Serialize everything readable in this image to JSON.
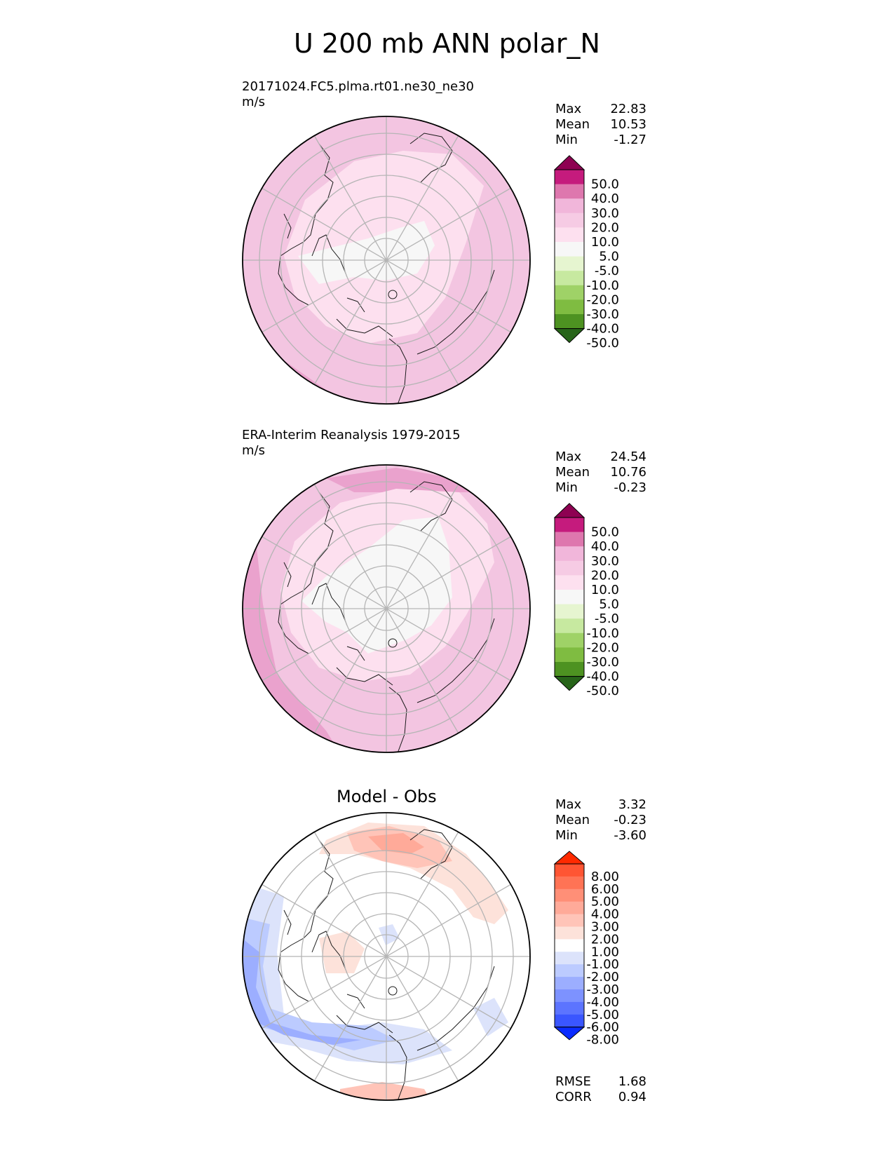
{
  "title": "U 200 mb ANN polar_N",
  "panels": [
    {
      "id": "test",
      "title_line1": "20171024.FC5.plma.rt01.ne30_ne30",
      "title_line2": "m/s",
      "stats": [
        {
          "label": "Max",
          "value": "22.83"
        },
        {
          "label": "Mean",
          "value": "10.53"
        },
        {
          "label": "Min",
          "value": "-1.27"
        }
      ]
    },
    {
      "id": "ref",
      "title_line1": "ERA-Interim Reanalysis 1979-2015",
      "title_line2": "m/s",
      "stats": [
        {
          "label": "Max",
          "value": "24.54"
        },
        {
          "label": "Mean",
          "value": "10.76"
        },
        {
          "label": "Min",
          "value": "-0.23"
        }
      ]
    },
    {
      "id": "diff",
      "title": "Model - Obs",
      "stats": [
        {
          "label": "Max",
          "value": "3.32"
        },
        {
          "label": "Mean",
          "value": "-0.23"
        },
        {
          "label": "Min",
          "value": "-3.60"
        }
      ],
      "metrics": [
        {
          "label": "RMSE",
          "value": "1.68"
        },
        {
          "label": "CORR",
          "value": "0.94"
        }
      ]
    }
  ],
  "colorbars": {
    "field": {
      "labels": [
        "50.0",
        "40.0",
        "30.0",
        "20.0",
        "10.0",
        "5.0",
        "-5.0",
        "-10.0",
        "-20.0",
        "-30.0",
        "-40.0",
        "-50.0"
      ],
      "colors": [
        "#8e0152",
        "#c51b7d",
        "#de77ae",
        "#f1b6da",
        "#f6cbe4",
        "#fde0ef",
        "#f7f7f7",
        "#e6f5d0",
        "#c7e9a0",
        "#9fd267",
        "#7fbc41",
        "#4d9221",
        "#276419"
      ]
    },
    "diff": {
      "labels": [
        "8.00",
        "6.00",
        "5.00",
        "4.00",
        "3.00",
        "2.00",
        "1.00",
        "-1.00",
        "-2.00",
        "-3.00",
        "-4.00",
        "-5.00",
        "-6.00",
        "-8.00"
      ],
      "colors": [
        "#ff2a00",
        "#ff5533",
        "#ff7355",
        "#ff8f77",
        "#ffaa99",
        "#ffc4b8",
        "#fde2da",
        "#ffffff",
        "#dce3fb",
        "#bccbff",
        "#9caeff",
        "#7d92ff",
        "#5c74ff",
        "#3a56ff",
        "#0a2bff"
      ]
    }
  },
  "chart_data": {
    "type": "heatmap",
    "title": "U 200 mb ANN polar_N",
    "variable": "U 200 mb",
    "units": "m/s",
    "projection": "polar_N",
    "panels": [
      {
        "name": "20171024.FC5.plma.rt01.ne30_ne30",
        "max": 22.83,
        "mean": 10.53,
        "min": -1.27,
        "contour_levels": [
          -50,
          -40,
          -30,
          -20,
          -10,
          -5,
          5,
          10,
          20,
          30,
          40,
          50
        ]
      },
      {
        "name": "ERA-Interim Reanalysis 1979-2015",
        "max": 24.54,
        "mean": 10.76,
        "min": -0.23,
        "contour_levels": [
          -50,
          -40,
          -30,
          -20,
          -10,
          -5,
          5,
          10,
          20,
          30,
          40,
          50
        ]
      },
      {
        "name": "Model - Obs",
        "max": 3.32,
        "mean": -0.23,
        "min": -3.6,
        "rmse": 1.68,
        "corr": 0.94,
        "contour_levels": [
          -8,
          -6,
          -5,
          -4,
          -3,
          -2,
          -1,
          1,
          2,
          3,
          4,
          5,
          6,
          8
        ]
      }
    ]
  }
}
